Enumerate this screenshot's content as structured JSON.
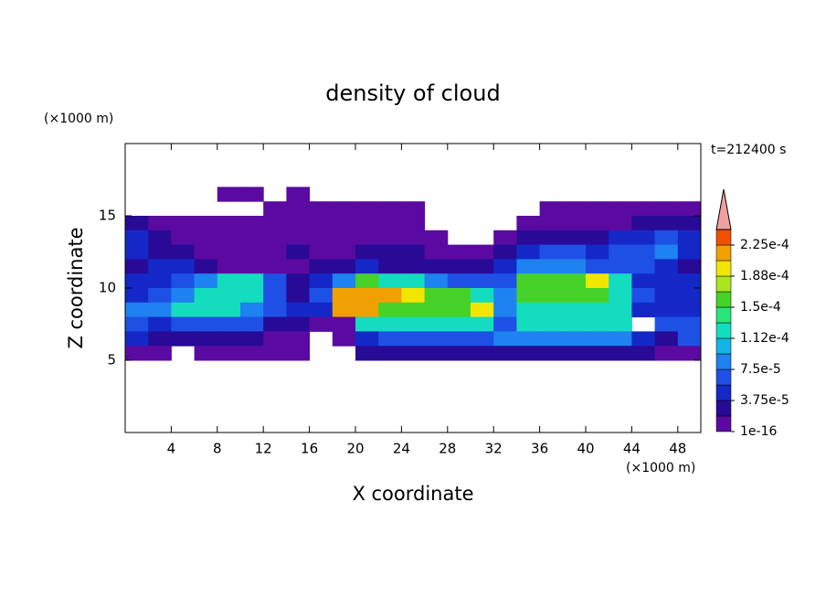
{
  "chart_data": {
    "type": "heatmap",
    "title": "density of cloud",
    "x_label": "X coordinate",
    "y_label": "Z coordinate",
    "x_unit": "(×1000 m)",
    "y_unit": "(×1000 m)",
    "annotation": "t=212400 s",
    "xlim": [
      0,
      50
    ],
    "ylim": [
      0,
      20
    ],
    "xticks": [
      4,
      8,
      12,
      16,
      20,
      24,
      28,
      32,
      36,
      40,
      44,
      48
    ],
    "yticks": [
      5,
      10,
      15
    ],
    "x": [
      1,
      3,
      5,
      7,
      9,
      11,
      13,
      15,
      17,
      19,
      21,
      23,
      25,
      27,
      29,
      31,
      33,
      35,
      37,
      39,
      41,
      43,
      45,
      47,
      49
    ],
    "y": [
      16.5,
      15.5,
      14.5,
      13.5,
      12.5,
      11.5,
      10.5,
      9.5,
      8.5,
      7.5,
      6.5,
      5.5
    ],
    "values": [
      [
        null,
        null,
        null,
        null,
        1e-06,
        1e-06,
        null,
        1e-06,
        null,
        null,
        null,
        null,
        null,
        null,
        null,
        null,
        null,
        null,
        null,
        null,
        null,
        null,
        null,
        null,
        null
      ],
      [
        null,
        null,
        null,
        null,
        null,
        null,
        1e-06,
        1e-06,
        1e-06,
        1e-06,
        1e-06,
        1e-06,
        1e-06,
        null,
        null,
        null,
        null,
        null,
        1e-06,
        1e-06,
        1e-06,
        1e-06,
        1e-06,
        1e-06,
        1e-06
      ],
      [
        2e-05,
        1e-06,
        1e-06,
        1e-06,
        1e-06,
        1e-06,
        1e-06,
        1e-06,
        1e-06,
        1e-06,
        1e-06,
        1e-06,
        1e-06,
        null,
        null,
        null,
        null,
        1e-06,
        1e-06,
        1e-06,
        1e-06,
        1e-06,
        2e-05,
        2e-05,
        2e-05
      ],
      [
        4e-05,
        2e-05,
        1e-06,
        1e-06,
        1e-06,
        1e-06,
        1e-06,
        1e-06,
        1e-06,
        1e-06,
        1e-06,
        1e-06,
        1e-06,
        1e-06,
        null,
        null,
        1e-06,
        2e-05,
        2e-05,
        2e-05,
        2e-05,
        4e-05,
        4e-05,
        6e-05,
        4e-05
      ],
      [
        4e-05,
        2e-05,
        2e-05,
        1e-06,
        1e-06,
        1e-06,
        1e-06,
        2e-05,
        1e-06,
        1e-06,
        2e-05,
        2e-05,
        2e-05,
        1e-06,
        1e-06,
        1e-06,
        2e-05,
        4e-05,
        6e-05,
        6e-05,
        4e-05,
        6e-05,
        6e-05,
        9e-05,
        4e-05
      ],
      [
        2e-05,
        4e-05,
        4e-05,
        2e-05,
        1e-06,
        1e-06,
        1e-06,
        1e-06,
        2e-05,
        2e-05,
        4e-05,
        2e-05,
        2e-05,
        2e-05,
        2e-05,
        2e-05,
        4e-05,
        9e-05,
        9e-05,
        9e-05,
        6e-05,
        6e-05,
        6e-05,
        4e-05,
        2e-05
      ],
      [
        4e-05,
        4e-05,
        6e-05,
        9e-05,
        0.00012,
        0.00012,
        6e-05,
        2e-05,
        4e-05,
        9e-05,
        0.00016,
        0.00012,
        0.00012,
        9e-05,
        6e-05,
        6e-05,
        6e-05,
        0.00016,
        0.00016,
        0.00016,
        0.00019,
        0.00012,
        4e-05,
        4e-05,
        4e-05
      ],
      [
        4e-05,
        6e-05,
        9e-05,
        0.00012,
        0.00012,
        0.00012,
        6e-05,
        2e-05,
        6e-05,
        0.00022,
        0.00022,
        0.00022,
        0.00019,
        0.00016,
        0.00016,
        0.00012,
        9e-05,
        0.00016,
        0.00016,
        0.00016,
        0.00016,
        0.00012,
        6e-05,
        4e-05,
        4e-05
      ],
      [
        9e-05,
        9e-05,
        0.00012,
        0.00012,
        0.00012,
        9e-05,
        6e-05,
        4e-05,
        4e-05,
        0.00022,
        0.00022,
        0.00016,
        0.00016,
        0.00016,
        0.00016,
        0.00019,
        9e-05,
        0.00012,
        0.00012,
        0.00012,
        0.00012,
        0.00012,
        4e-05,
        4e-05,
        4e-05
      ],
      [
        6e-05,
        4e-05,
        6e-05,
        6e-05,
        6e-05,
        6e-05,
        2e-05,
        2e-05,
        1e-06,
        1e-06,
        0.00012,
        0.00012,
        0.00012,
        0.00012,
        0.00012,
        0.00012,
        6e-05,
        0.00012,
        0.00012,
        0.00012,
        0.00012,
        0.00012,
        null,
        6e-05,
        6e-05
      ],
      [
        4e-05,
        2e-05,
        2e-05,
        2e-05,
        2e-05,
        2e-05,
        1e-06,
        1e-06,
        null,
        1e-06,
        4e-05,
        6e-05,
        6e-05,
        6e-05,
        6e-05,
        6e-05,
        9e-05,
        9e-05,
        9e-05,
        9e-05,
        9e-05,
        9e-05,
        4e-05,
        2e-05,
        6e-05
      ],
      [
        1e-06,
        1e-06,
        null,
        1e-06,
        1e-06,
        1e-06,
        1e-06,
        1e-06,
        null,
        null,
        2e-05,
        2e-05,
        2e-05,
        2e-05,
        2e-05,
        2e-05,
        2e-05,
        2e-05,
        2e-05,
        2e-05,
        2e-05,
        2e-05,
        2e-05,
        1e-06,
        1e-06
      ]
    ],
    "colorbar": {
      "levels": [
        1e-16,
        1.875e-05,
        3.75e-05,
        5.625e-05,
        7.5e-05,
        9.375e-05,
        0.0001125,
        0.00013125,
        0.00015,
        0.00016875,
        0.0001875,
        0.00020625,
        0.000225,
        0.00024375
      ],
      "colors": [
        "#5a0aa0",
        "#280a96",
        "#1428c8",
        "#1e50e6",
        "#1e82f0",
        "#14b4e6",
        "#14dcbe",
        "#28e678",
        "#46d228",
        "#aae61e",
        "#f0e600",
        "#f0a000",
        "#f05000",
        "#e61e1e"
      ],
      "extend_color": "#f0a0a0",
      "ticks": [
        {
          "value": 1e-16,
          "label": "1e-16"
        },
        {
          "value": 3.75e-05,
          "label": "3.75e-5"
        },
        {
          "value": 7.5e-05,
          "label": "7.5e-5"
        },
        {
          "value": 0.0001125,
          "label": "1.12e-4"
        },
        {
          "value": 0.00015,
          "label": "1.5e-4"
        },
        {
          "value": 0.0001875,
          "label": "1.88e-4"
        },
        {
          "value": 0.000225,
          "label": "2.25e-4"
        }
      ]
    }
  }
}
